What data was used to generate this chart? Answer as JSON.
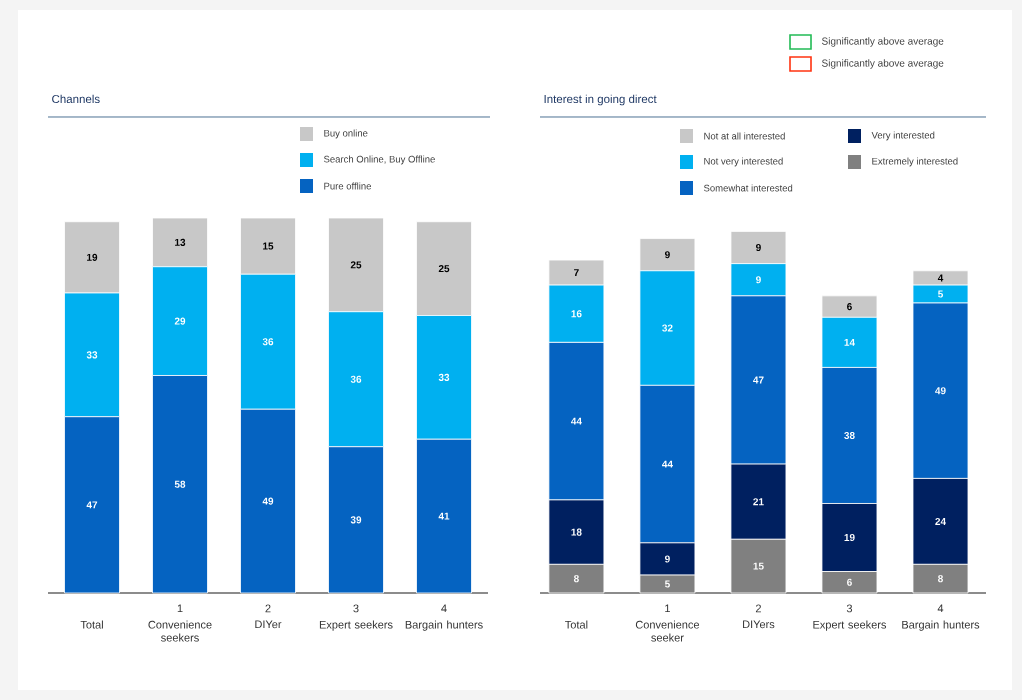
{
  "chart_data": [
    {
      "type": "other",
      "legend": "top right",
      "series": [
        {
          "name": "Significantly above average",
          "color": "#22bb55"
        },
        {
          "name": "Significantly above average",
          "color": "#ff3311"
        }
      ]
    },
    {
      "type": "bar",
      "title": "Channels",
      "stacked": true,
      "data_labels": true,
      "legend": "top right",
      "categories": [
        "Total",
        "Convenience seekers",
        "DIYer",
        "Expert seekers",
        "Bargain hunters"
      ],
      "annotations": [
        "1",
        "2",
        "3",
        "4"
      ],
      "series": [
        {
          "name": "Pure offline",
          "color": "#0563c1",
          "values": [
            47,
            58,
            49,
            39,
            41
          ]
        },
        {
          "name": "Search Online, Buy Offline",
          "color": "#00b0f0",
          "values": [
            33,
            29,
            36,
            36,
            33
          ]
        },
        {
          "name": "Buy online",
          "color": "#c8c8c8",
          "values": [
            19,
            13,
            15,
            25,
            25
          ]
        }
      ]
    },
    {
      "type": "bar",
      "title": "Interest in going direct",
      "stacked": true,
      "data_labels": true,
      "legend": "top right",
      "categories": [
        "Total",
        "Convenience seeker",
        "DIYers",
        "Expert seekers",
        "Bargain hunters"
      ],
      "annotations": [
        "1",
        "2",
        "3",
        "4"
      ],
      "series": [
        {
          "name": "Extremely interested",
          "color": "#808080",
          "values": [
            8,
            5,
            15,
            6,
            8
          ]
        },
        {
          "name": "Very interested",
          "color": "#002060",
          "values": [
            18,
            9,
            21,
            19,
            24
          ]
        },
        {
          "name": "Somewhat interested",
          "color": "#0563c1",
          "values": [
            44,
            44,
            47,
            38,
            49
          ]
        },
        {
          "name": "Not very interested",
          "color": "#00b0f0",
          "values": [
            16,
            32,
            9,
            14,
            5
          ]
        },
        {
          "name": "Not at all interested",
          "color": "#c8c8c8",
          "values": [
            7,
            9,
            9,
            6,
            4
          ]
        }
      ]
    }
  ]
}
